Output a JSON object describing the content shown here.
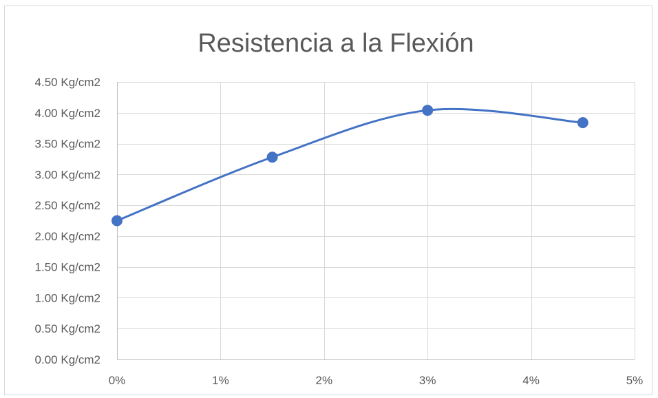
{
  "chart_data": {
    "type": "line",
    "smooth": true,
    "title": "Resistencia a la Flexión",
    "x": [
      0,
      1.5,
      3,
      4.5
    ],
    "series": [
      {
        "values": [
          2.25,
          3.28,
          4.04,
          3.84
        ],
        "color": "#4472c4"
      }
    ],
    "xlim": [
      0,
      5
    ],
    "ylim": [
      0,
      4.5
    ],
    "x_ticks": [
      0,
      1,
      2,
      3,
      4,
      5
    ],
    "x_tick_labels": [
      "0%",
      "1%",
      "2%",
      "3%",
      "4%",
      "5%"
    ],
    "y_ticks": [
      0,
      0.5,
      1,
      1.5,
      2,
      2.5,
      3,
      3.5,
      4,
      4.5
    ],
    "y_tick_labels": [
      "0.00 Kg/cm2",
      "0.50 Kg/cm2",
      "1.00 Kg/cm2",
      "1.50 Kg/cm2",
      "2.00 Kg/cm2",
      "2.50 Kg/cm2",
      "3.00 Kg/cm2",
      "3.50 Kg/cm2",
      "4.00 Kg/cm2",
      "4.50 Kg/cm2"
    ],
    "xlabel": "",
    "ylabel": "",
    "grid": true,
    "legend": "none"
  }
}
